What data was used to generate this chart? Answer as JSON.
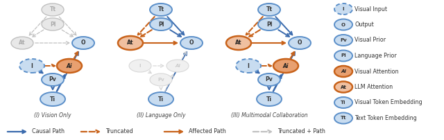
{
  "bg_color": "#ffffff",
  "BLUE_EDGE": "#5b8fc9",
  "BLUE_FILL": "#c8dcf0",
  "BLUE_DARK": "#3a6aad",
  "ORANGE_EDGE": "#c8621a",
  "ORANGE_FILL": "#e8a070",
  "ORANGE_LIGHT_FILL": "#f0c0a0",
  "GRAY_EDGE": "#c0c0c0",
  "GRAY_FILL": "#e8e8e8",
  "GRAY_TEXT": "#aaaaaa",
  "d1_title": "(I) Vision Only",
  "d2_title": "(II) Language Only",
  "d3_title": "(III) Multimodal Collaboration",
  "legend_nodes": [
    {
      "text": "I",
      "type": "dashed_blue"
    },
    {
      "text": "O",
      "type": "solid_blue"
    },
    {
      "text": "Pv",
      "type": "solid_blue"
    },
    {
      "text": "Pl",
      "type": "solid_blue"
    },
    {
      "text": "Ai",
      "type": "solid_orange_fill"
    },
    {
      "text": "At",
      "type": "solid_orange_outline"
    },
    {
      "text": "Ti",
      "type": "solid_blue"
    },
    {
      "text": "Tt",
      "type": "solid_blue"
    }
  ],
  "legend_labels": [
    "Visual Input",
    "Output",
    "Visual Prior",
    "Language Prior",
    "Visual Attention",
    "LLM Attention",
    "Visual Token Embedding",
    "Text Token Embedding"
  ]
}
